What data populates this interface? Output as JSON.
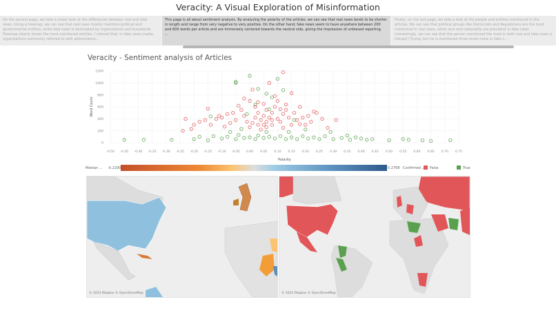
{
  "title": "Veracity: A Visual Exploration of Misinformation",
  "story_points": [
    {
      "text": "On the second page, we take a closer look at the differences between real and fake news. Using a treemap, we can see that real news mostly mentions political and governmental entities, while fake news is dominated by organizations and buzzwords. Treemap clearly shows the most mentioned entities. I noticed that, in fake news media, organizations commonly referred to with abbreviation...",
      "selected": false
    },
    {
      "text": "This page is all about sentiment analysis. By analyzing the polarity of the articles, we can see that real news tends to be shorter in length and range from very negative to very positive. On the other hand, fake news seem to have anywhere between 200 and 600 words per article and are immensely centered towards the neutral side, giving the impression of unbiased reporting.",
      "extra": "...",
      "selected": true
    },
    {
      "text": "Finally, on the last page, we take a look at the people and entities mentioned in the articles. We can see that political groups like Democrats and Republicans are the most mentioned in real news, while race and nationality are prevalent in fake news. Interestingly, we can see that the person mentioned the most in both real and fake news is Donald J Trump, but he is mentioned three times more in fake n...",
      "selected": false
    }
  ],
  "chart_data": {
    "type": "scatter",
    "title": "Veracity - Sentiment analysis of Articles",
    "xlabel": "Polarity",
    "ylabel": "Word Count",
    "xlim": [
      -0.5,
      0.75
    ],
    "ylim": [
      0,
      1200
    ],
    "xticks": [
      "-0.50",
      "-0.45",
      "-0.40",
      "-0.35",
      "-0.30",
      "-0.25",
      "-0.20",
      "-0.15",
      "-0.10",
      "-0.05",
      "0.00",
      "0.05",
      "0.10",
      "0.15",
      "0.20",
      "0.25",
      "0.30",
      "0.35",
      "0.40",
      "0.45",
      "0.50",
      "0.55",
      "0.60",
      "0.65",
      "0.70",
      "0.75"
    ],
    "yticks": [
      "0",
      "200",
      "400",
      "600",
      "800",
      "1000",
      "1200"
    ],
    "grid": true,
    "series": [
      {
        "name": "False",
        "color": "#e15759",
        "points": [
          [
            -0.24,
            200
          ],
          [
            -0.21,
            230
          ],
          [
            -0.23,
            400
          ],
          [
            -0.15,
            570
          ],
          [
            -0.18,
            350
          ],
          [
            -0.16,
            380
          ],
          [
            -0.14,
            300
          ],
          [
            -0.12,
            400
          ],
          [
            -0.1,
            420
          ],
          [
            -0.08,
            480
          ],
          [
            -0.06,
            500
          ],
          [
            -0.05,
            380
          ],
          [
            -0.04,
            620
          ],
          [
            -0.03,
            550
          ],
          [
            -0.02,
            450
          ],
          [
            -0.01,
            350
          ],
          [
            0,
            700
          ],
          [
            0.01,
            890
          ],
          [
            0.02,
            600
          ],
          [
            0.02,
            420
          ],
          [
            0.03,
            300
          ],
          [
            0.03,
            500
          ],
          [
            0.04,
            380
          ],
          [
            0.05,
            450
          ],
          [
            0.05,
            650
          ],
          [
            0.06,
            350
          ],
          [
            0.06,
            550
          ],
          [
            0.07,
            420
          ],
          [
            0.08,
            300
          ],
          [
            0.08,
            500
          ],
          [
            0.09,
            600
          ],
          [
            0.1,
            400
          ],
          [
            0.1,
            700
          ],
          [
            0.11,
            350
          ],
          [
            0.12,
            480
          ],
          [
            0.12,
            250
          ],
          [
            0.13,
            550
          ],
          [
            0.14,
            420
          ],
          [
            0.15,
            300
          ],
          [
            0.16,
            500
          ],
          [
            0.17,
            380
          ],
          [
            0.18,
            600
          ],
          [
            0.19,
            420
          ],
          [
            0.2,
            300
          ],
          [
            0.21,
            450
          ],
          [
            0.22,
            350
          ],
          [
            0.24,
            500
          ],
          [
            0.26,
            400
          ],
          [
            0.28,
            250
          ],
          [
            0.31,
            380
          ],
          [
            0.12,
            1180
          ],
          [
            0.07,
            1000
          ],
          [
            -0.07,
            330
          ],
          [
            0.0,
            260
          ],
          [
            0.04,
            220
          ],
          [
            -0.09,
            270
          ],
          [
            0.13,
            640
          ],
          [
            0.09,
            780
          ],
          [
            -0.02,
            740
          ],
          [
            0.15,
            830
          ],
          [
            0.01,
            330
          ],
          [
            0.06,
            260
          ],
          [
            0.11,
            560
          ],
          [
            0.03,
            680
          ],
          [
            -0.11,
            450
          ],
          [
            0.18,
            310
          ],
          [
            0.23,
            520
          ],
          [
            -0.2,
            300
          ],
          [
            0.08,
            380
          ],
          [
            0.05,
            300
          ]
        ]
      },
      {
        "name": "True",
        "color": "#59a14f",
        "points": [
          [
            -0.45,
            50
          ],
          [
            -0.38,
            50
          ],
          [
            -0.28,
            50
          ],
          [
            -0.2,
            60
          ],
          [
            -0.18,
            100
          ],
          [
            -0.15,
            40
          ],
          [
            -0.13,
            110
          ],
          [
            -0.1,
            70
          ],
          [
            -0.08,
            100
          ],
          [
            -0.05,
            60
          ],
          [
            -0.04,
            130
          ],
          [
            -0.02,
            80
          ],
          [
            0,
            90
          ],
          [
            0.02,
            60
          ],
          [
            0.03,
            120
          ],
          [
            0.05,
            80
          ],
          [
            0.07,
            100
          ],
          [
            0.09,
            70
          ],
          [
            0.11,
            110
          ],
          [
            0.13,
            60
          ],
          [
            0.15,
            90
          ],
          [
            0.17,
            60
          ],
          [
            0.19,
            110
          ],
          [
            0.21,
            70
          ],
          [
            0.23,
            90
          ],
          [
            0.25,
            60
          ],
          [
            0.27,
            110
          ],
          [
            0.3,
            60
          ],
          [
            0.33,
            80
          ],
          [
            0.36,
            50
          ],
          [
            0.4,
            70
          ],
          [
            0.42,
            50
          ],
          [
            0.44,
            60
          ],
          [
            0.5,
            40
          ],
          [
            0.55,
            60
          ],
          [
            0.57,
            50
          ],
          [
            0.62,
            40
          ],
          [
            0.65,
            30
          ],
          [
            0.72,
            40
          ],
          [
            -0.05,
            1020
          ],
          [
            -0.05,
            1000
          ],
          [
            0.0,
            1120
          ],
          [
            0.03,
            900
          ],
          [
            0.06,
            820
          ],
          [
            0.08,
            760
          ],
          [
            0.1,
            1070
          ],
          [
            0.02,
            640
          ],
          [
            -0.01,
            480
          ],
          [
            0.07,
            560
          ],
          [
            0.12,
            880
          ],
          [
            -0.14,
            440
          ],
          [
            0.16,
            380
          ],
          [
            0.2,
            220
          ],
          [
            0.29,
            180
          ],
          [
            0.06,
            180
          ],
          [
            -0.03,
            230
          ],
          [
            0.14,
            180
          ],
          [
            0.35,
            120
          ],
          [
            0.38,
            90
          ],
          [
            -0.07,
            180
          ]
        ]
      }
    ]
  },
  "legend": {
    "median_label": "Median ...",
    "min": "-0.2290",
    "max": "0.2768",
    "confirmed_label": "Confirmed ..",
    "false_label": "False",
    "true_label": "True",
    "false_color": "#e15759",
    "true_color": "#59a14f"
  },
  "maps": [
    {
      "attribution": "© 2023 Mapbox © OpenStreetMap"
    },
    {
      "attribution": "© 2023 Mapbox © OpenStreetMap"
    }
  ]
}
